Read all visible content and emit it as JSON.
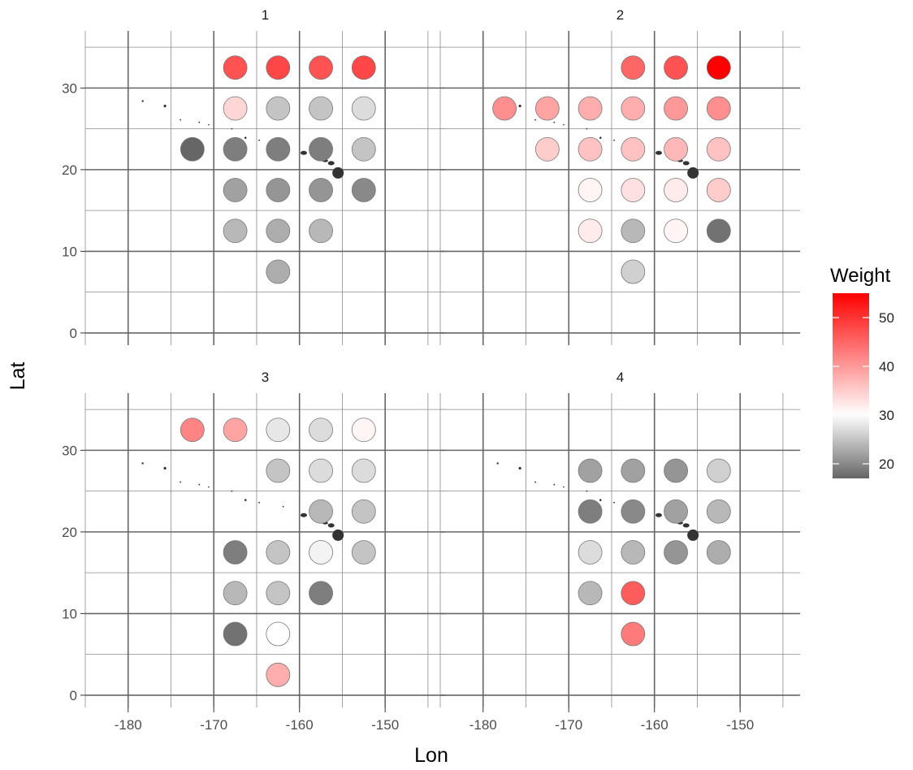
{
  "chart_data": {
    "type": "scatter",
    "xlabel": "Lon",
    "ylabel": "Lat",
    "xlim": [
      -185,
      -143
    ],
    "ylim": [
      -1.5,
      37
    ],
    "x_ticks": [
      -180,
      -170,
      -160,
      -150
    ],
    "x_tick_labels": [
      "-180",
      "-170",
      "-160",
      "-150"
    ],
    "y_ticks": [
      0,
      10,
      20,
      30
    ],
    "y_tick_labels": [
      "0",
      "10",
      "20",
      "30"
    ],
    "grid": true,
    "legend": {
      "title": "Weight",
      "placement": "right",
      "min": 17,
      "max": 55,
      "midpoint": 30,
      "low_color": "#666666",
      "mid_color": "#ffffff",
      "high_color": "#ff0000",
      "breaks": [
        20,
        30,
        40,
        50
      ],
      "break_labels": [
        "20",
        "30",
        "40",
        "50"
      ]
    },
    "panels": [
      {
        "label": "1",
        "points": [
          {
            "lon": -167.5,
            "lat": 32.5,
            "weight": 47
          },
          {
            "lon": -162.5,
            "lat": 32.5,
            "weight": 48
          },
          {
            "lon": -157.5,
            "lat": 32.5,
            "weight": 47
          },
          {
            "lon": -152.5,
            "lat": 32.5,
            "weight": 48
          },
          {
            "lon": -167.5,
            "lat": 27.5,
            "weight": 34
          },
          {
            "lon": -162.5,
            "lat": 27.5,
            "weight": 25
          },
          {
            "lon": -157.5,
            "lat": 27.5,
            "weight": 25
          },
          {
            "lon": -152.5,
            "lat": 27.5,
            "weight": 27
          },
          {
            "lon": -172.5,
            "lat": 22.5,
            "weight": 17
          },
          {
            "lon": -167.5,
            "lat": 22.5,
            "weight": 19
          },
          {
            "lon": -162.5,
            "lat": 22.5,
            "weight": 19
          },
          {
            "lon": -157.5,
            "lat": 22.5,
            "weight": 19
          },
          {
            "lon": -152.5,
            "lat": 22.5,
            "weight": 25
          },
          {
            "lon": -167.5,
            "lat": 17.5,
            "weight": 22
          },
          {
            "lon": -162.5,
            "lat": 17.5,
            "weight": 21
          },
          {
            "lon": -157.5,
            "lat": 17.5,
            "weight": 21
          },
          {
            "lon": -152.5,
            "lat": 17.5,
            "weight": 20
          },
          {
            "lon": -167.5,
            "lat": 12.5,
            "weight": 24
          },
          {
            "lon": -162.5,
            "lat": 12.5,
            "weight": 23
          },
          {
            "lon": -157.5,
            "lat": 12.5,
            "weight": 24
          },
          {
            "lon": -162.5,
            "lat": 7.5,
            "weight": 23
          }
        ]
      },
      {
        "label": "2",
        "points": [
          {
            "lon": -162.5,
            "lat": 32.5,
            "weight": 45
          },
          {
            "lon": -157.5,
            "lat": 32.5,
            "weight": 47
          },
          {
            "lon": -152.5,
            "lat": 32.5,
            "weight": 55
          },
          {
            "lon": -177.5,
            "lat": 27.5,
            "weight": 41
          },
          {
            "lon": -172.5,
            "lat": 27.5,
            "weight": 39
          },
          {
            "lon": -167.5,
            "lat": 27.5,
            "weight": 38
          },
          {
            "lon": -162.5,
            "lat": 27.5,
            "weight": 38
          },
          {
            "lon": -157.5,
            "lat": 27.5,
            "weight": 40
          },
          {
            "lon": -152.5,
            "lat": 27.5,
            "weight": 41
          },
          {
            "lon": -172.5,
            "lat": 22.5,
            "weight": 35
          },
          {
            "lon": -167.5,
            "lat": 22.5,
            "weight": 36
          },
          {
            "lon": -162.5,
            "lat": 22.5,
            "weight": 36
          },
          {
            "lon": -157.5,
            "lat": 22.5,
            "weight": 37
          },
          {
            "lon": -152.5,
            "lat": 22.5,
            "weight": 36
          },
          {
            "lon": -167.5,
            "lat": 17.5,
            "weight": 31
          },
          {
            "lon": -162.5,
            "lat": 17.5,
            "weight": 33
          },
          {
            "lon": -157.5,
            "lat": 17.5,
            "weight": 32
          },
          {
            "lon": -152.5,
            "lat": 17.5,
            "weight": 35
          },
          {
            "lon": -167.5,
            "lat": 12.5,
            "weight": 32
          },
          {
            "lon": -162.5,
            "lat": 12.5,
            "weight": 24
          },
          {
            "lon": -157.5,
            "lat": 12.5,
            "weight": 31
          },
          {
            "lon": -152.5,
            "lat": 12.5,
            "weight": 18
          },
          {
            "lon": -162.5,
            "lat": 7.5,
            "weight": 26
          }
        ]
      },
      {
        "label": "3",
        "points": [
          {
            "lon": -172.5,
            "lat": 32.5,
            "weight": 42
          },
          {
            "lon": -167.5,
            "lat": 32.5,
            "weight": 39
          },
          {
            "lon": -162.5,
            "lat": 32.5,
            "weight": 28
          },
          {
            "lon": -157.5,
            "lat": 32.5,
            "weight": 27
          },
          {
            "lon": -152.5,
            "lat": 32.5,
            "weight": 31
          },
          {
            "lon": -162.5,
            "lat": 27.5,
            "weight": 25
          },
          {
            "lon": -157.5,
            "lat": 27.5,
            "weight": 27
          },
          {
            "lon": -152.5,
            "lat": 27.5,
            "weight": 27
          },
          {
            "lon": -157.5,
            "lat": 22.5,
            "weight": 24
          },
          {
            "lon": -152.5,
            "lat": 22.5,
            "weight": 25
          },
          {
            "lon": -167.5,
            "lat": 17.5,
            "weight": 19
          },
          {
            "lon": -162.5,
            "lat": 17.5,
            "weight": 25
          },
          {
            "lon": -157.5,
            "lat": 17.5,
            "weight": 29
          },
          {
            "lon": -152.5,
            "lat": 17.5,
            "weight": 25
          },
          {
            "lon": -167.5,
            "lat": 12.5,
            "weight": 24
          },
          {
            "lon": -162.5,
            "lat": 12.5,
            "weight": 25
          },
          {
            "lon": -157.5,
            "lat": 12.5,
            "weight": 19
          },
          {
            "lon": -167.5,
            "lat": 7.5,
            "weight": 18
          },
          {
            "lon": -162.5,
            "lat": 7.5,
            "weight": 30
          },
          {
            "lon": -162.5,
            "lat": 2.5,
            "weight": 38
          }
        ]
      },
      {
        "label": "4",
        "points": [
          {
            "lon": -167.5,
            "lat": 27.5,
            "weight": 22
          },
          {
            "lon": -162.5,
            "lat": 27.5,
            "weight": 22
          },
          {
            "lon": -157.5,
            "lat": 27.5,
            "weight": 21
          },
          {
            "lon": -152.5,
            "lat": 27.5,
            "weight": 26
          },
          {
            "lon": -167.5,
            "lat": 22.5,
            "weight": 19
          },
          {
            "lon": -162.5,
            "lat": 22.5,
            "weight": 20
          },
          {
            "lon": -157.5,
            "lat": 22.5,
            "weight": 22
          },
          {
            "lon": -152.5,
            "lat": 22.5,
            "weight": 24
          },
          {
            "lon": -167.5,
            "lat": 17.5,
            "weight": 27
          },
          {
            "lon": -162.5,
            "lat": 17.5,
            "weight": 24
          },
          {
            "lon": -157.5,
            "lat": 17.5,
            "weight": 21
          },
          {
            "lon": -152.5,
            "lat": 17.5,
            "weight": 23
          },
          {
            "lon": -167.5,
            "lat": 12.5,
            "weight": 24
          },
          {
            "lon": -162.5,
            "lat": 12.5,
            "weight": 46
          },
          {
            "lon": -162.5,
            "lat": 7.5,
            "weight": 43
          }
        ]
      }
    ]
  }
}
